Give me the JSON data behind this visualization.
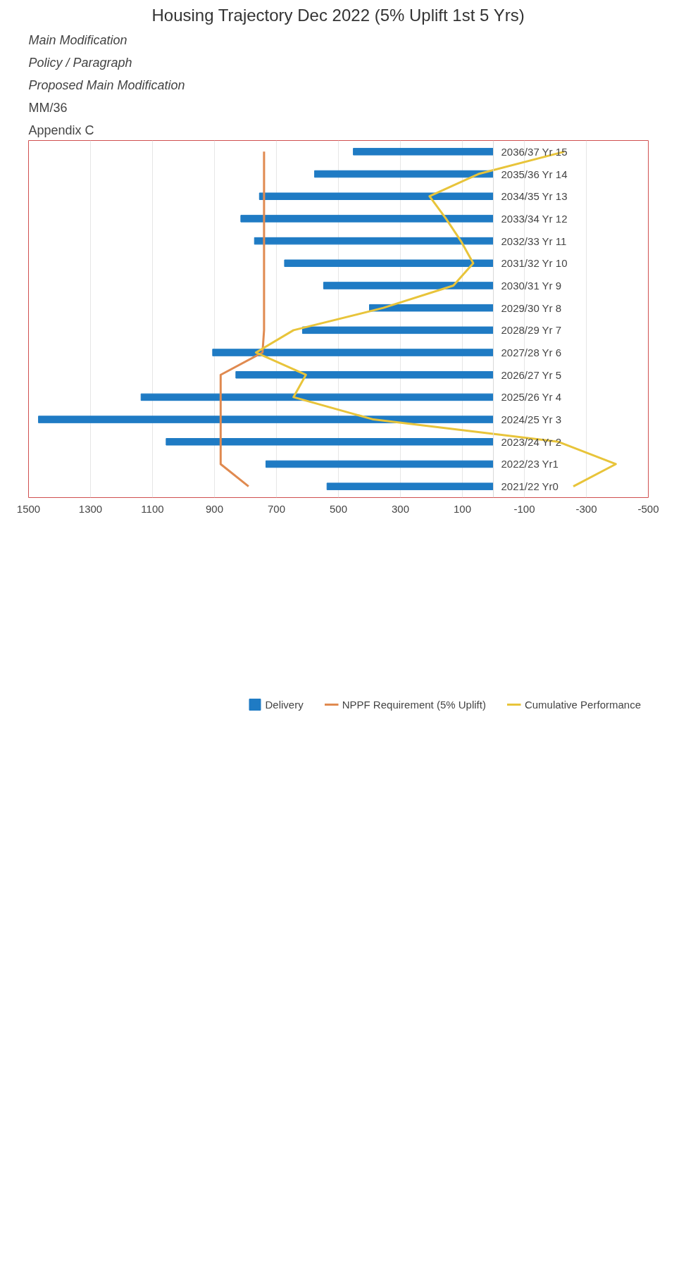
{
  "chart_data": {
    "type": "bar",
    "orientation": "horizontal",
    "title": "Housing Trajectory Dec 2022 (5% Uplift 1st 5 Yrs)",
    "categories": [
      "2036/37 Yr 15",
      "2035/36 Yr 14",
      "2034/35 Yr 13",
      "2033/34 Yr 12",
      "2032/33 Yr 11",
      "2031/32 Yr 10",
      "2030/31 Yr 9",
      "2029/30 Yr 8",
      "2028/29 Yr 7",
      "2027/28 Yr 6",
      "2026/27 Yr 5",
      "2025/26 Yr 4",
      "2024/25 Yr 3",
      "2023/24 Yr 2",
      "2022/23 Yr1",
      "2021/22 Yr0"
    ],
    "series": [
      {
        "name": "Delivery",
        "color": "#1f7bc4",
        "values": [
          452,
          577,
          755,
          815,
          771,
          674,
          548,
          400,
          616,
          906,
          831,
          1137,
          1468,
          1056,
          734,
          537
        ]
      },
      {
        "name": "NPPF Requirement (5% Uplift)",
        "type": "line",
        "color": "#e08a50",
        "values": [
          740,
          740,
          740,
          740,
          740,
          740,
          740,
          740,
          740,
          745,
          880,
          880,
          880,
          880,
          880,
          790
        ]
      },
      {
        "name": "Cumulative Performance",
        "type": "line",
        "color": "#e8c43a",
        "values": [
          -229,
          48,
          206,
          153,
          105,
          65,
          129,
          355,
          645,
          766,
          605,
          645,
          387,
          -210,
          -395,
          -258
        ]
      }
    ],
    "xlim": [
      1500,
      -500
    ],
    "xticks": [
      1500,
      1300,
      1100,
      900,
      700,
      500,
      300,
      100,
      -100,
      -300,
      -500
    ],
    "grid": "x",
    "legend": "bottom",
    "annotations": [
      "Main Modification",
      "Policy / Paragraph",
      "Proposed Main Modification",
      "MM/36",
      "Appendix C"
    ]
  }
}
